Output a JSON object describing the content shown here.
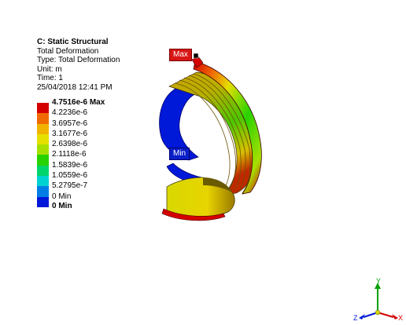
{
  "info": {
    "title": "C: Static Structural",
    "line1": "Total Deformation",
    "line2": "Type: Total Deformation",
    "line3": "Unit: m",
    "line4": "Time: 1",
    "line5": "25/04/2018 12:41 PM"
  },
  "legend": {
    "labels": [
      "4.7516e-6 Max",
      "4.2236e-6",
      "3.6957e-6",
      "3.1677e-6",
      "2.6398e-6",
      "2.1118e-6",
      "1.5839e-6",
      "1.0559e-6",
      "5.2795e-7",
      "0 Min"
    ],
    "colors": [
      "#d40000",
      "#f06a00",
      "#f0b400",
      "#e5e000",
      "#a6e000",
      "#28d200",
      "#00d56b",
      "#00d2d2",
      "#007ee6",
      "#0018d8"
    ]
  },
  "probes": {
    "max": "Max",
    "min": "Min"
  },
  "triad": {
    "x": "X",
    "y": "Y",
    "z": "Z"
  }
}
